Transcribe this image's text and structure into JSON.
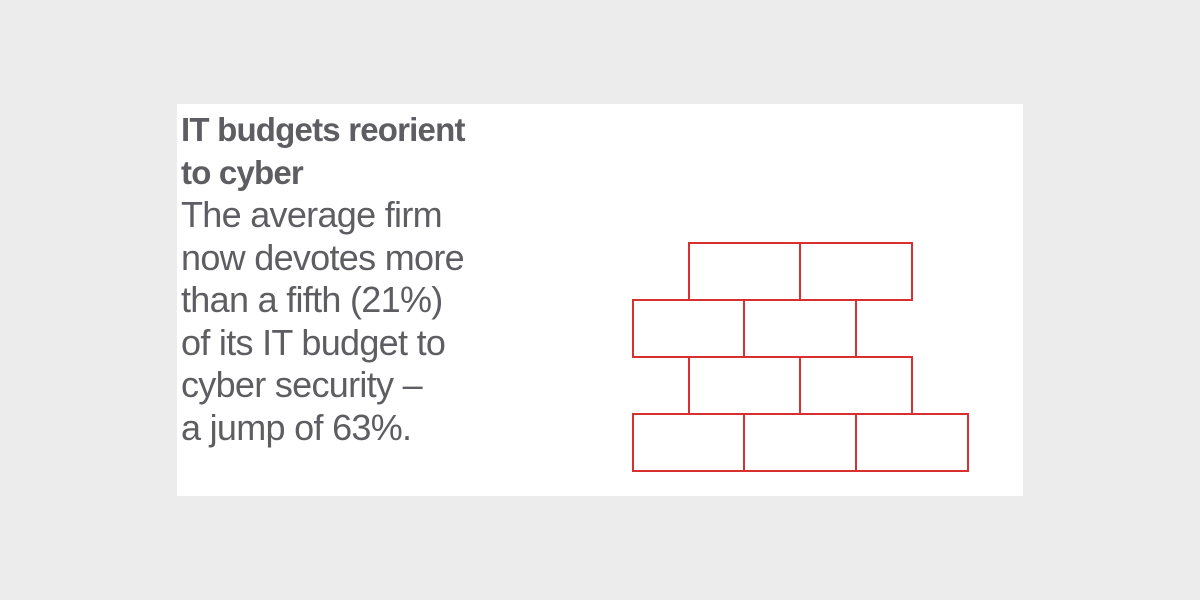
{
  "infographic": {
    "headline": "IT budgets reorient\nto cyber",
    "body": "The average firm\nnow devotes more\nthan a fifth (21%)\nof its IT budget to\ncyber security –\na jump of 63%."
  },
  "colors": {
    "background": "#ececec",
    "card": "#ffffff",
    "text": "#5e5d62",
    "brick_stroke": "#d8302f"
  },
  "illustration": {
    "icon": "brick-wall-icon"
  }
}
